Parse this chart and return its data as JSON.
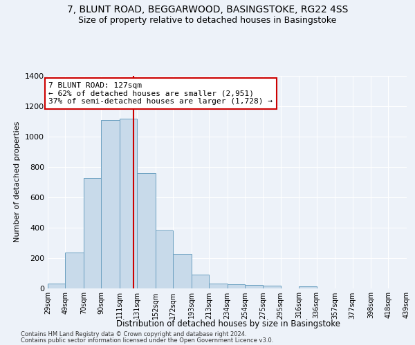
{
  "title1": "7, BLUNT ROAD, BEGGARWOOD, BASINGSTOKE, RG22 4SS",
  "title2": "Size of property relative to detached houses in Basingstoke",
  "xlabel": "Distribution of detached houses by size in Basingstoke",
  "ylabel": "Number of detached properties",
  "footnote1": "Contains HM Land Registry data © Crown copyright and database right 2024.",
  "footnote2": "Contains public sector information licensed under the Open Government Licence v3.0.",
  "bar_color": "#c8daea",
  "bar_edge_color": "#6a9fc0",
  "property_line_color": "#cc0000",
  "property_size": 127,
  "annotation_line1": "7 BLUNT ROAD: 127sqm",
  "annotation_line2": "← 62% of detached houses are smaller (2,951)",
  "annotation_line3": "37% of semi-detached houses are larger (1,728) →",
  "bin_edges": [
    29,
    49,
    70,
    90,
    111,
    131,
    152,
    172,
    193,
    213,
    234,
    254,
    275,
    295,
    316,
    336,
    357,
    377,
    398,
    418,
    439
  ],
  "bar_heights": [
    30,
    235,
    725,
    1110,
    1120,
    760,
    378,
    225,
    90,
    30,
    25,
    22,
    15,
    0,
    10,
    0,
    0,
    0,
    0,
    0
  ],
  "ylim": [
    0,
    1400
  ],
  "yticks": [
    0,
    200,
    400,
    600,
    800,
    1000,
    1200,
    1400
  ],
  "background_color": "#edf2f9",
  "grid_color": "#ffffff",
  "title_fontsize": 10,
  "subtitle_fontsize": 9,
  "ann_fontsize": 8
}
